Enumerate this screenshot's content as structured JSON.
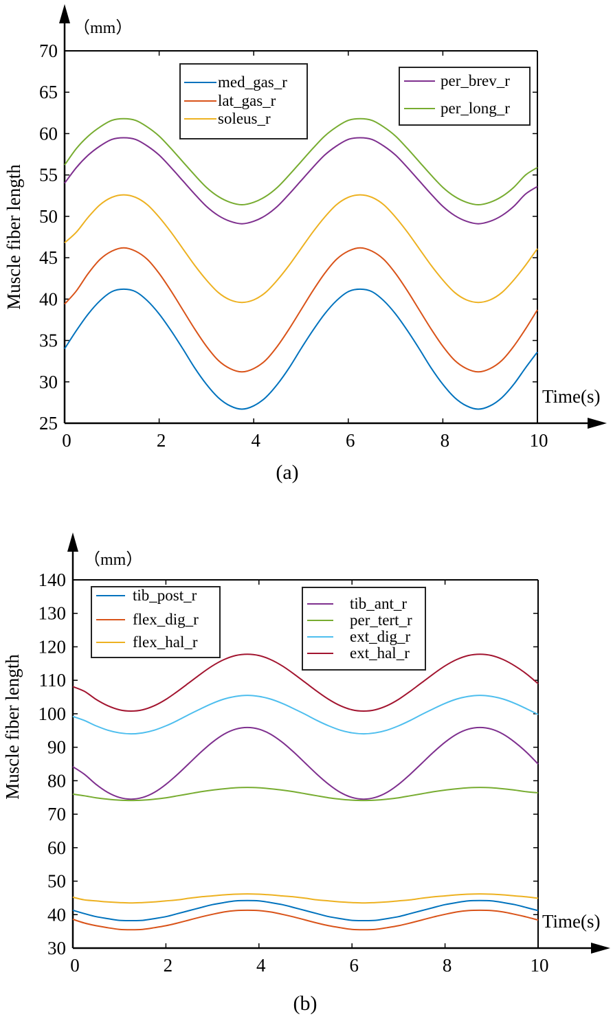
{
  "chart_data": [
    {
      "type": "line",
      "caption": "(a)",
      "unit": "（mm）",
      "ylabel": "Muscle fiber length",
      "xlabel": "Time(s)",
      "xlim": [
        0,
        10
      ],
      "ylim": [
        25,
        70
      ],
      "x_ticks": [
        "0",
        "2",
        "4",
        "6",
        "8",
        "10"
      ],
      "y_ticks": [
        "25",
        "30",
        "35",
        "40",
        "45",
        "50",
        "55",
        "60",
        "65",
        "70"
      ],
      "x_step": 0.25,
      "legend_left": [
        "med_gas_r",
        "lat_gas_r",
        "soleus_r"
      ],
      "legend_right": [
        "per_brev_r",
        "per_long_r"
      ],
      "series": [
        {
          "name": "med_gas_r",
          "color": "#0072BD",
          "values": [
            34.0,
            36.2,
            38.2,
            39.8,
            40.9,
            41.2,
            40.9,
            39.8,
            38.2,
            36.2,
            34.0,
            31.7,
            29.7,
            28.1,
            27.1,
            26.7,
            27.1,
            28.1,
            29.7,
            31.7,
            34.0,
            36.2,
            38.2,
            39.8,
            40.9,
            41.2,
            40.9,
            39.8,
            38.2,
            36.2,
            34.0,
            31.7,
            29.7,
            28.1,
            27.1,
            26.7,
            27.1,
            28.1,
            29.7,
            31.7,
            33.6
          ]
        },
        {
          "name": "lat_gas_r",
          "color": "#D95319",
          "values": [
            39.4,
            41.0,
            43.1,
            44.8,
            45.8,
            46.2,
            45.8,
            44.8,
            43.1,
            41.0,
            38.7,
            36.4,
            34.3,
            32.6,
            31.6,
            31.2,
            31.6,
            32.6,
            34.3,
            36.4,
            38.7,
            41.0,
            43.1,
            44.8,
            45.8,
            46.2,
            45.8,
            44.8,
            43.1,
            41.0,
            38.7,
            36.4,
            34.3,
            32.6,
            31.6,
            31.2,
            31.6,
            32.6,
            34.3,
            36.4,
            38.7
          ]
        },
        {
          "name": "soleus_r",
          "color": "#EDB120",
          "values": [
            46.8,
            48.1,
            49.9,
            51.4,
            52.3,
            52.6,
            52.3,
            51.4,
            49.9,
            48.1,
            46.1,
            44.1,
            42.3,
            40.8,
            39.9,
            39.6,
            39.9,
            40.8,
            42.3,
            44.1,
            46.1,
            48.1,
            49.9,
            51.4,
            52.3,
            52.6,
            52.3,
            51.4,
            49.9,
            48.1,
            46.1,
            44.1,
            42.3,
            40.8,
            39.9,
            39.6,
            39.9,
            40.8,
            42.3,
            44.1,
            46.1
          ]
        },
        {
          "name": "per_brev_r",
          "color": "#7E2F8E",
          "values": [
            54.0,
            55.9,
            57.4,
            58.5,
            59.3,
            59.5,
            59.3,
            58.5,
            57.4,
            55.9,
            54.3,
            52.7,
            51.2,
            50.1,
            49.4,
            49.1,
            49.4,
            50.1,
            51.2,
            52.7,
            54.3,
            55.9,
            57.4,
            58.5,
            59.3,
            59.5,
            59.3,
            58.5,
            57.4,
            55.9,
            54.3,
            52.7,
            51.2,
            50.1,
            49.4,
            49.1,
            49.4,
            50.1,
            51.2,
            52.7,
            53.6
          ]
        },
        {
          "name": "per_long_r",
          "color": "#77AC30",
          "values": [
            56.2,
            58.2,
            59.7,
            60.8,
            61.6,
            61.8,
            61.6,
            60.8,
            59.7,
            58.2,
            56.6,
            55.0,
            53.5,
            52.4,
            51.7,
            51.4,
            51.7,
            52.4,
            53.5,
            55.0,
            56.6,
            58.2,
            59.7,
            60.8,
            61.6,
            61.8,
            61.6,
            60.8,
            59.7,
            58.2,
            56.6,
            55.0,
            53.5,
            52.4,
            51.7,
            51.4,
            51.7,
            52.4,
            53.5,
            55.0,
            55.9
          ]
        }
      ]
    },
    {
      "type": "line",
      "caption": "(b)",
      "unit": "（mm）",
      "ylabel": "Muscle fiber length",
      "xlabel": "Time(s)",
      "xlim": [
        0,
        10
      ],
      "ylim": [
        30,
        140
      ],
      "x_ticks": [
        "0",
        "2",
        "4",
        "6",
        "8",
        "10"
      ],
      "y_ticks": [
        "30",
        "40",
        "50",
        "60",
        "70",
        "80",
        "90",
        "100",
        "110",
        "120",
        "130",
        "140"
      ],
      "x_step": 0.25,
      "legend_left": [
        "tib_post_r",
        "flex_dig_r",
        "flex_hal_r"
      ],
      "legend_right": [
        "tib_ant_r",
        "per_tert_r",
        "ext_dig_r",
        "ext_hal_r"
      ],
      "series": [
        {
          "name": "tib_post_r",
          "color": "#0072BD",
          "values": [
            41.3,
            40.3,
            39.4,
            38.8,
            38.3,
            38.2,
            38.3,
            38.8,
            39.4,
            40.3,
            41.2,
            42.1,
            43.0,
            43.6,
            44.1,
            44.2,
            44.1,
            43.6,
            43.0,
            42.1,
            41.2,
            40.3,
            39.4,
            38.8,
            38.3,
            38.2,
            38.3,
            38.8,
            39.4,
            40.3,
            41.2,
            42.1,
            43.0,
            43.6,
            44.1,
            44.2,
            44.1,
            43.6,
            43.0,
            42.1,
            41.2
          ]
        },
        {
          "name": "flex_dig_r",
          "color": "#D95319",
          "values": [
            38.6,
            37.5,
            36.7,
            36.1,
            35.6,
            35.5,
            35.6,
            36.1,
            36.7,
            37.5,
            38.4,
            39.3,
            40.1,
            40.8,
            41.2,
            41.3,
            41.2,
            40.8,
            40.1,
            39.3,
            38.4,
            37.5,
            36.7,
            36.1,
            35.6,
            35.5,
            35.6,
            36.1,
            36.7,
            37.5,
            38.4,
            39.3,
            40.1,
            40.8,
            41.2,
            41.3,
            41.2,
            40.8,
            40.1,
            39.3,
            38.4
          ]
        },
        {
          "name": "flex_hal_r",
          "color": "#EDB120",
          "values": [
            45.2,
            44.4,
            44.1,
            43.8,
            43.6,
            43.5,
            43.6,
            43.8,
            44.1,
            44.4,
            44.9,
            45.3,
            45.6,
            45.9,
            46.1,
            46.2,
            46.1,
            45.9,
            45.6,
            45.3,
            44.9,
            44.4,
            44.1,
            43.8,
            43.6,
            43.5,
            43.6,
            43.8,
            44.1,
            44.4,
            44.9,
            45.3,
            45.6,
            45.9,
            46.1,
            46.2,
            46.1,
            45.9,
            45.6,
            45.3,
            44.9
          ]
        },
        {
          "name": "tib_ant_r",
          "color": "#7E2F8E",
          "values": [
            84.2,
            81.9,
            78.9,
            76.5,
            75.0,
            74.5,
            75.0,
            76.5,
            78.9,
            81.9,
            85.2,
            88.5,
            91.5,
            93.9,
            95.4,
            95.9,
            95.4,
            93.9,
            91.5,
            88.5,
            85.2,
            81.9,
            78.9,
            76.5,
            75.0,
            74.5,
            75.0,
            76.5,
            78.9,
            81.9,
            85.2,
            88.5,
            91.5,
            93.9,
            95.4,
            95.9,
            95.4,
            93.9,
            91.5,
            88.5,
            85.0
          ]
        },
        {
          "name": "per_tert_r",
          "color": "#77AC30",
          "values": [
            76.0,
            75.5,
            74.9,
            74.5,
            74.2,
            74.1,
            74.2,
            74.5,
            74.9,
            75.5,
            76.1,
            76.7,
            77.2,
            77.6,
            77.9,
            78.0,
            77.9,
            77.6,
            77.2,
            76.7,
            76.1,
            75.5,
            74.9,
            74.5,
            74.2,
            74.1,
            74.2,
            74.5,
            74.9,
            75.5,
            76.1,
            76.7,
            77.2,
            77.6,
            77.9,
            78.0,
            77.9,
            77.6,
            77.2,
            76.7,
            76.4
          ]
        },
        {
          "name": "ext_dig_r",
          "color": "#4DBEEE",
          "values": [
            99.2,
            98.0,
            96.4,
            95.1,
            94.3,
            94.0,
            94.3,
            95.1,
            96.4,
            98.0,
            99.8,
            101.5,
            103.1,
            104.4,
            105.2,
            105.5,
            105.2,
            104.4,
            103.1,
            101.5,
            99.8,
            98.0,
            96.4,
            95.1,
            94.3,
            94.0,
            94.3,
            95.1,
            96.4,
            98.0,
            99.8,
            101.5,
            103.1,
            104.4,
            105.2,
            105.5,
            105.2,
            104.4,
            103.1,
            101.5,
            99.8
          ]
        },
        {
          "name": "ext_hal_r",
          "color": "#A2142F",
          "values": [
            108.1,
            106.7,
            104.3,
            102.4,
            101.2,
            100.8,
            101.2,
            102.4,
            104.3,
            106.7,
            109.3,
            111.9,
            114.3,
            116.2,
            117.4,
            117.8,
            117.4,
            116.2,
            114.3,
            111.9,
            109.3,
            106.7,
            104.3,
            102.4,
            101.2,
            100.8,
            101.2,
            102.4,
            104.3,
            106.7,
            109.3,
            111.9,
            114.3,
            116.2,
            117.4,
            117.8,
            117.4,
            116.2,
            114.3,
            111.9,
            109.0
          ]
        }
      ]
    }
  ]
}
